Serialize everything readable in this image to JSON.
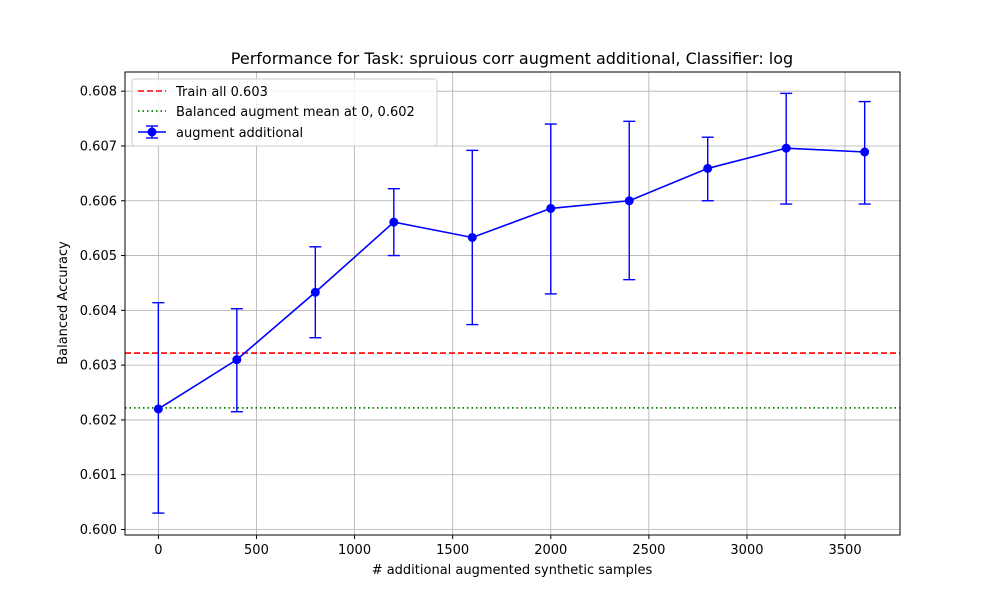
{
  "chart_data": {
    "type": "line",
    "title": "Performance for Task: spruious corr augment additional, Classifier: log",
    "xlabel": "# additional augmented synthetic samples",
    "ylabel": "Balanced Accuracy",
    "xlim": [
      -170,
      3780
    ],
    "ylim": [
      0.5999,
      0.60835
    ],
    "xticks": [
      0,
      500,
      1000,
      1500,
      2000,
      2500,
      3000,
      3500
    ],
    "yticks": [
      0.6,
      0.601,
      0.602,
      0.603,
      0.604,
      0.605,
      0.606,
      0.607,
      0.608
    ],
    "ytick_labels": [
      "0.600",
      "0.601",
      "0.602",
      "0.603",
      "0.604",
      "0.605",
      "0.606",
      "0.607",
      "0.608"
    ],
    "grid": true,
    "legend_position": "top-left",
    "series": [
      {
        "name": "augment additional",
        "color": "#0000ff",
        "marker": "circle",
        "x": [
          0,
          400,
          800,
          1200,
          1600,
          2000,
          2400,
          2800,
          3200,
          3600
        ],
        "y": [
          0.6022,
          0.6031,
          0.60433,
          0.60561,
          0.60533,
          0.60586,
          0.606,
          0.60659,
          0.60696,
          0.60689
        ],
        "err_low": [
          0.6003,
          0.60215,
          0.6035,
          0.605,
          0.60374,
          0.6043,
          0.60456,
          0.606,
          0.60594,
          0.60594
        ],
        "err_high": [
          0.60414,
          0.60403,
          0.60516,
          0.60622,
          0.60692,
          0.6074,
          0.60745,
          0.60716,
          0.60796,
          0.60781
        ]
      }
    ],
    "reference_lines": [
      {
        "name": "Train all  0.603",
        "y": 0.60322,
        "color": "#ff0000",
        "style": "dashed"
      },
      {
        "name": "Balanced augment mean at 0, 0.602",
        "y": 0.60222,
        "color": "#008000",
        "style": "dotted"
      }
    ]
  }
}
